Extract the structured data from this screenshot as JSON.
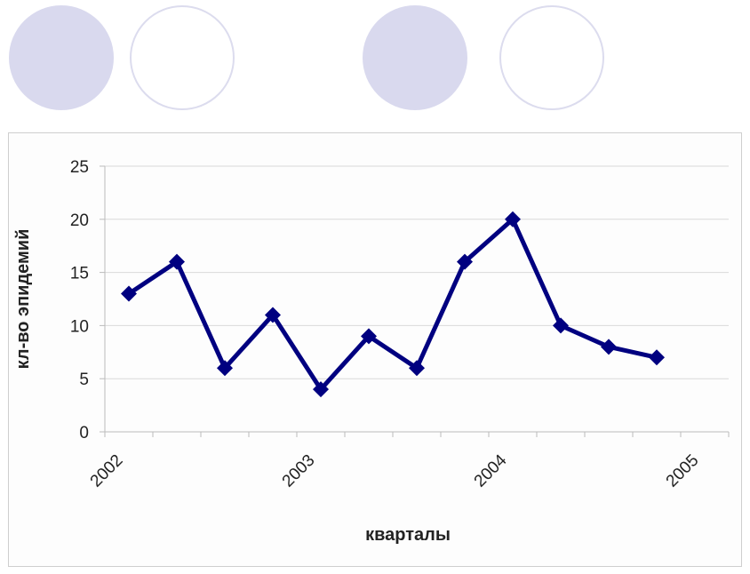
{
  "colors": {
    "series": "#000080",
    "deco_fill": "#d9d9ee",
    "deco_ring": "#dcdcee",
    "grid": "#d9d9d9"
  },
  "decorations": [
    {
      "name": "filled-circle"
    },
    {
      "name": "outline-circle"
    },
    {
      "name": "filled-circle"
    },
    {
      "name": "outline-circle"
    }
  ],
  "chart_data": {
    "type": "line",
    "title": "",
    "xlabel": "кварталы",
    "ylabel": "кл-во эпидемий",
    "ylim": [
      0,
      25
    ],
    "yticks": [
      0,
      5,
      10,
      15,
      20,
      25
    ],
    "x_tick_labels": [
      "2002",
      "2003",
      "2004",
      "2005"
    ],
    "grid": true,
    "legend": "none",
    "marker": "diamond",
    "series": [
      {
        "values": [
          13,
          16,
          6,
          11,
          4,
          9,
          6,
          16,
          20,
          10,
          8,
          7
        ]
      }
    ]
  }
}
